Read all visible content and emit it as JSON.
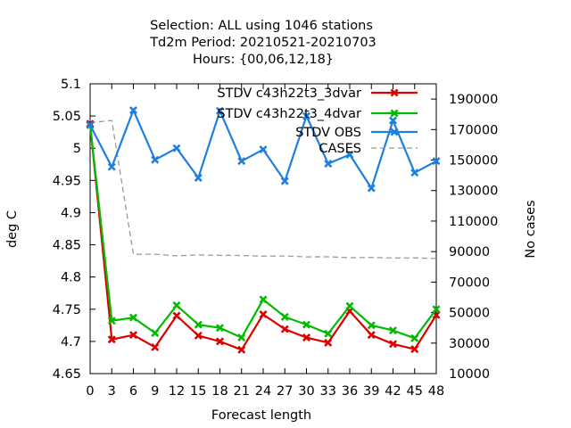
{
  "chart_data": {
    "type": "line",
    "title_lines": [
      "Selection: ALL using  1046 stations",
      "Td2m   Period: 20210521-20210703",
      "Hours: {00,06,12,18}"
    ],
    "xlabel": "Forecast length",
    "ylabel": "deg C",
    "y2label": "No cases",
    "x": [
      0,
      3,
      6,
      9,
      12,
      15,
      18,
      21,
      24,
      27,
      30,
      33,
      36,
      39,
      42,
      45,
      48
    ],
    "x_ticks": [
      "0",
      "3",
      "6",
      "9",
      "12",
      "15",
      "18",
      "21",
      "24",
      "27",
      "30",
      "33",
      "36",
      "39",
      "42",
      "45",
      "48"
    ],
    "ylim": [
      4.65,
      5.1
    ],
    "y_ticks": [
      "4.65",
      "4.7",
      "4.75",
      "4.8",
      "4.85",
      "4.9",
      "4.95",
      "5",
      "5.05",
      "5.1"
    ],
    "y2lim": [
      10000,
      200000
    ],
    "y2_ticks": [
      "10000",
      "30000",
      "50000",
      "70000",
      "90000",
      "110000",
      "130000",
      "150000",
      "170000",
      "190000"
    ],
    "legend_position": "top-right",
    "series": [
      {
        "name": "STDV c43h22t3_3dvar",
        "color": "#dd0000",
        "axis": "y",
        "marker": "x",
        "dashed": false,
        "values": [
          5.038,
          4.703,
          4.71,
          4.691,
          4.74,
          4.709,
          4.7,
          4.687,
          4.742,
          4.719,
          4.706,
          4.698,
          4.747,
          4.71,
          4.696,
          4.688,
          4.741
        ]
      },
      {
        "name": "STDV c43h22t3_4dvar",
        "color": "#00bb00",
        "axis": "y",
        "marker": "x",
        "dashed": false,
        "values": [
          5.036,
          4.732,
          4.737,
          4.713,
          4.756,
          4.726,
          4.721,
          4.706,
          4.765,
          4.738,
          4.726,
          4.712,
          4.755,
          4.725,
          4.717,
          4.705,
          4.75
        ]
      },
      {
        "name": "STDV OBS",
        "color": "#1f7fe0",
        "axis": "y",
        "marker": "x",
        "dashed": false,
        "values": [
          5.036,
          4.971,
          5.059,
          4.982,
          5.0,
          4.954,
          5.058,
          4.98,
          4.998,
          4.949,
          5.05,
          4.976,
          4.99,
          4.938,
          5.043,
          4.962,
          4.98
        ]
      },
      {
        "name": "CASES",
        "color": "#999999",
        "axis": "y2",
        "marker": "none",
        "dashed": true,
        "values": [
          174500,
          176000,
          88200,
          88300,
          87200,
          87800,
          87500,
          87400,
          87000,
          87100,
          86500,
          86600,
          86000,
          86100,
          85800,
          85900,
          85500
        ]
      }
    ]
  }
}
